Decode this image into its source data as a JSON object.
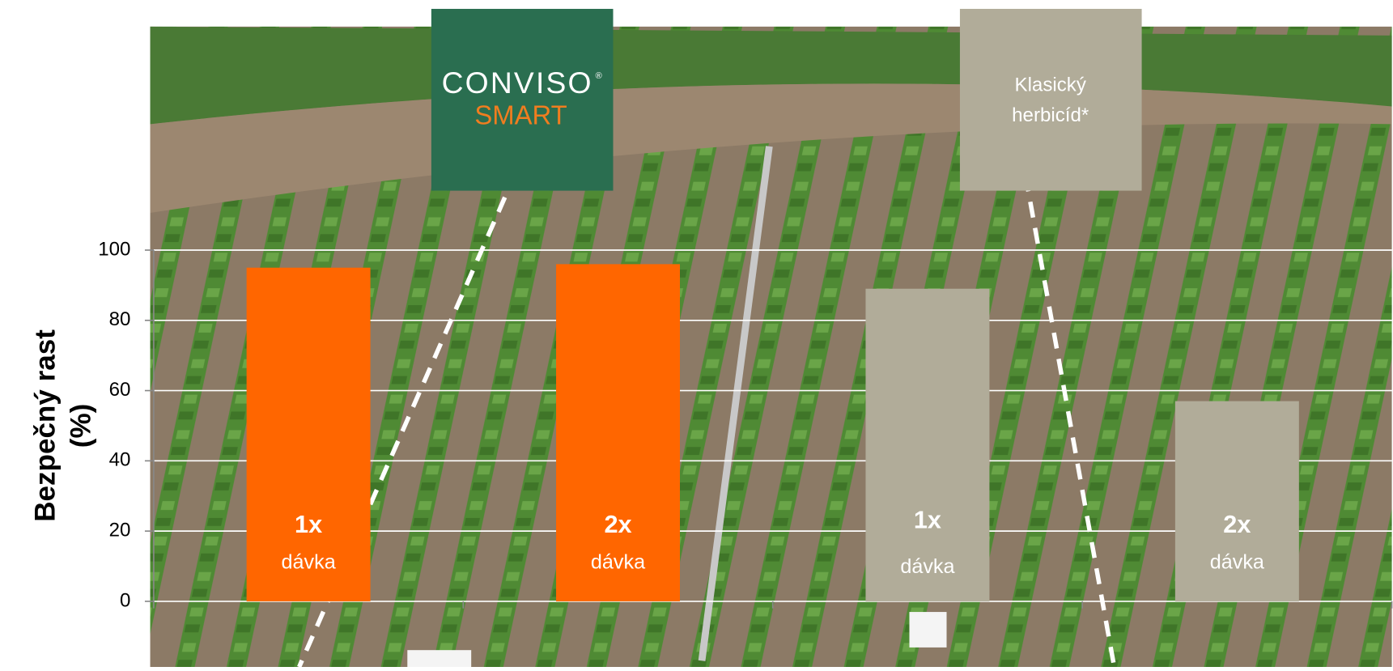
{
  "chart_data": {
    "type": "bar",
    "y_label": [
      "Bezpečný rast",
      "(%)"
    ],
    "categories": [
      "1x",
      "2x",
      "1x",
      "2x"
    ],
    "category_sublabels": [
      "dávka",
      "dávka",
      "dávka",
      "dávka"
    ],
    "values": [
      95,
      96,
      89,
      57
    ],
    "colors": [
      "#ff6600",
      "#ff6600",
      "#b1ac99",
      "#b1ac99"
    ],
    "ylim": [
      0,
      100
    ],
    "yticks": [
      0,
      20,
      40,
      60,
      80,
      100
    ],
    "grid": true,
    "groups": [
      {
        "label": [
          "CONVISO",
          "®",
          "SMART"
        ],
        "color": "#2a6e50"
      },
      {
        "label": [
          "Klasický",
          "herbicíd*"
        ],
        "color": "#b1ac99"
      }
    ]
  }
}
